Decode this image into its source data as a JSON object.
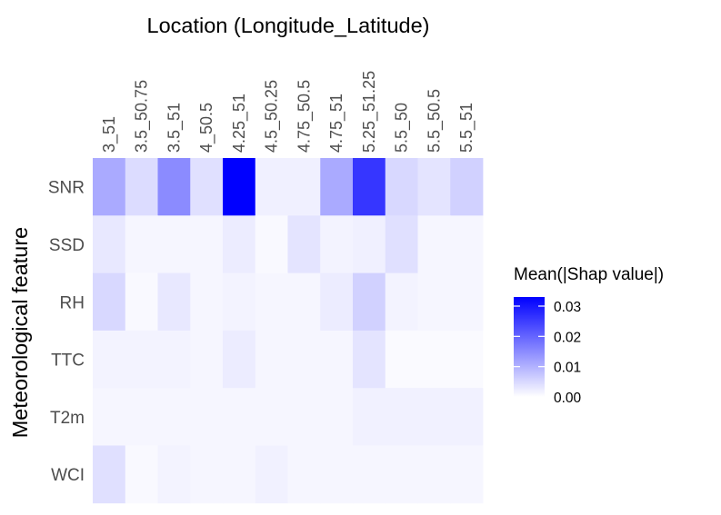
{
  "chart_data": {
    "type": "heatmap",
    "title": "",
    "xlabel": "Location (Longitude_Latitude)",
    "ylabel": "Meteorological feature",
    "x_axis_position": "top",
    "categories_x": [
      "3_51",
      "3.5_50.75",
      "3.5_51",
      "4_50.5",
      "4.25_51",
      "4.5_50.25",
      "4.75_50.5",
      "4.75_51",
      "5.25_51.25",
      "5.5_50",
      "5.5_50.5",
      "5.5_51"
    ],
    "categories_y": [
      "SNR",
      "SSD",
      "RH",
      "TTC",
      "T2m",
      "WCI"
    ],
    "values": [
      [
        0.011,
        0.0045,
        0.015,
        0.004,
        0.033,
        0.002,
        0.002,
        0.011,
        0.026,
        0.005,
        0.0035,
        0.006
      ],
      [
        0.003,
        0.0012,
        0.0012,
        0.0012,
        0.0025,
        0.0008,
        0.0035,
        0.0015,
        0.002,
        0.004,
        0.0012,
        0.0012
      ],
      [
        0.005,
        0.0008,
        0.003,
        0.0012,
        0.0015,
        0.0012,
        0.0012,
        0.0025,
        0.006,
        0.0015,
        0.0012,
        0.0012
      ],
      [
        0.0015,
        0.0015,
        0.0015,
        0.0012,
        0.0025,
        0.0012,
        0.0012,
        0.0012,
        0.0035,
        0.0006,
        0.0006,
        0.0006
      ],
      [
        0.0012,
        0.0012,
        0.0012,
        0.0012,
        0.0012,
        0.0012,
        0.0012,
        0.0012,
        0.0018,
        0.0018,
        0.0018,
        0.0018
      ],
      [
        0.004,
        0.0008,
        0.0015,
        0.0012,
        0.0012,
        0.0018,
        0.0012,
        0.0012,
        0.0012,
        0.0012,
        0.0012,
        0.0012
      ]
    ],
    "color_scale": {
      "low": "#ffffff",
      "high": "#0000ff",
      "min": 0,
      "max": 0.033
    },
    "legend": {
      "title": "Mean(|Shap value|)",
      "ticks": [
        0.0,
        0.01,
        0.02,
        0.03
      ],
      "tick_labels": [
        "0.00",
        "0.01",
        "0.02",
        "0.03"
      ],
      "placement": "right"
    },
    "grid": false
  }
}
